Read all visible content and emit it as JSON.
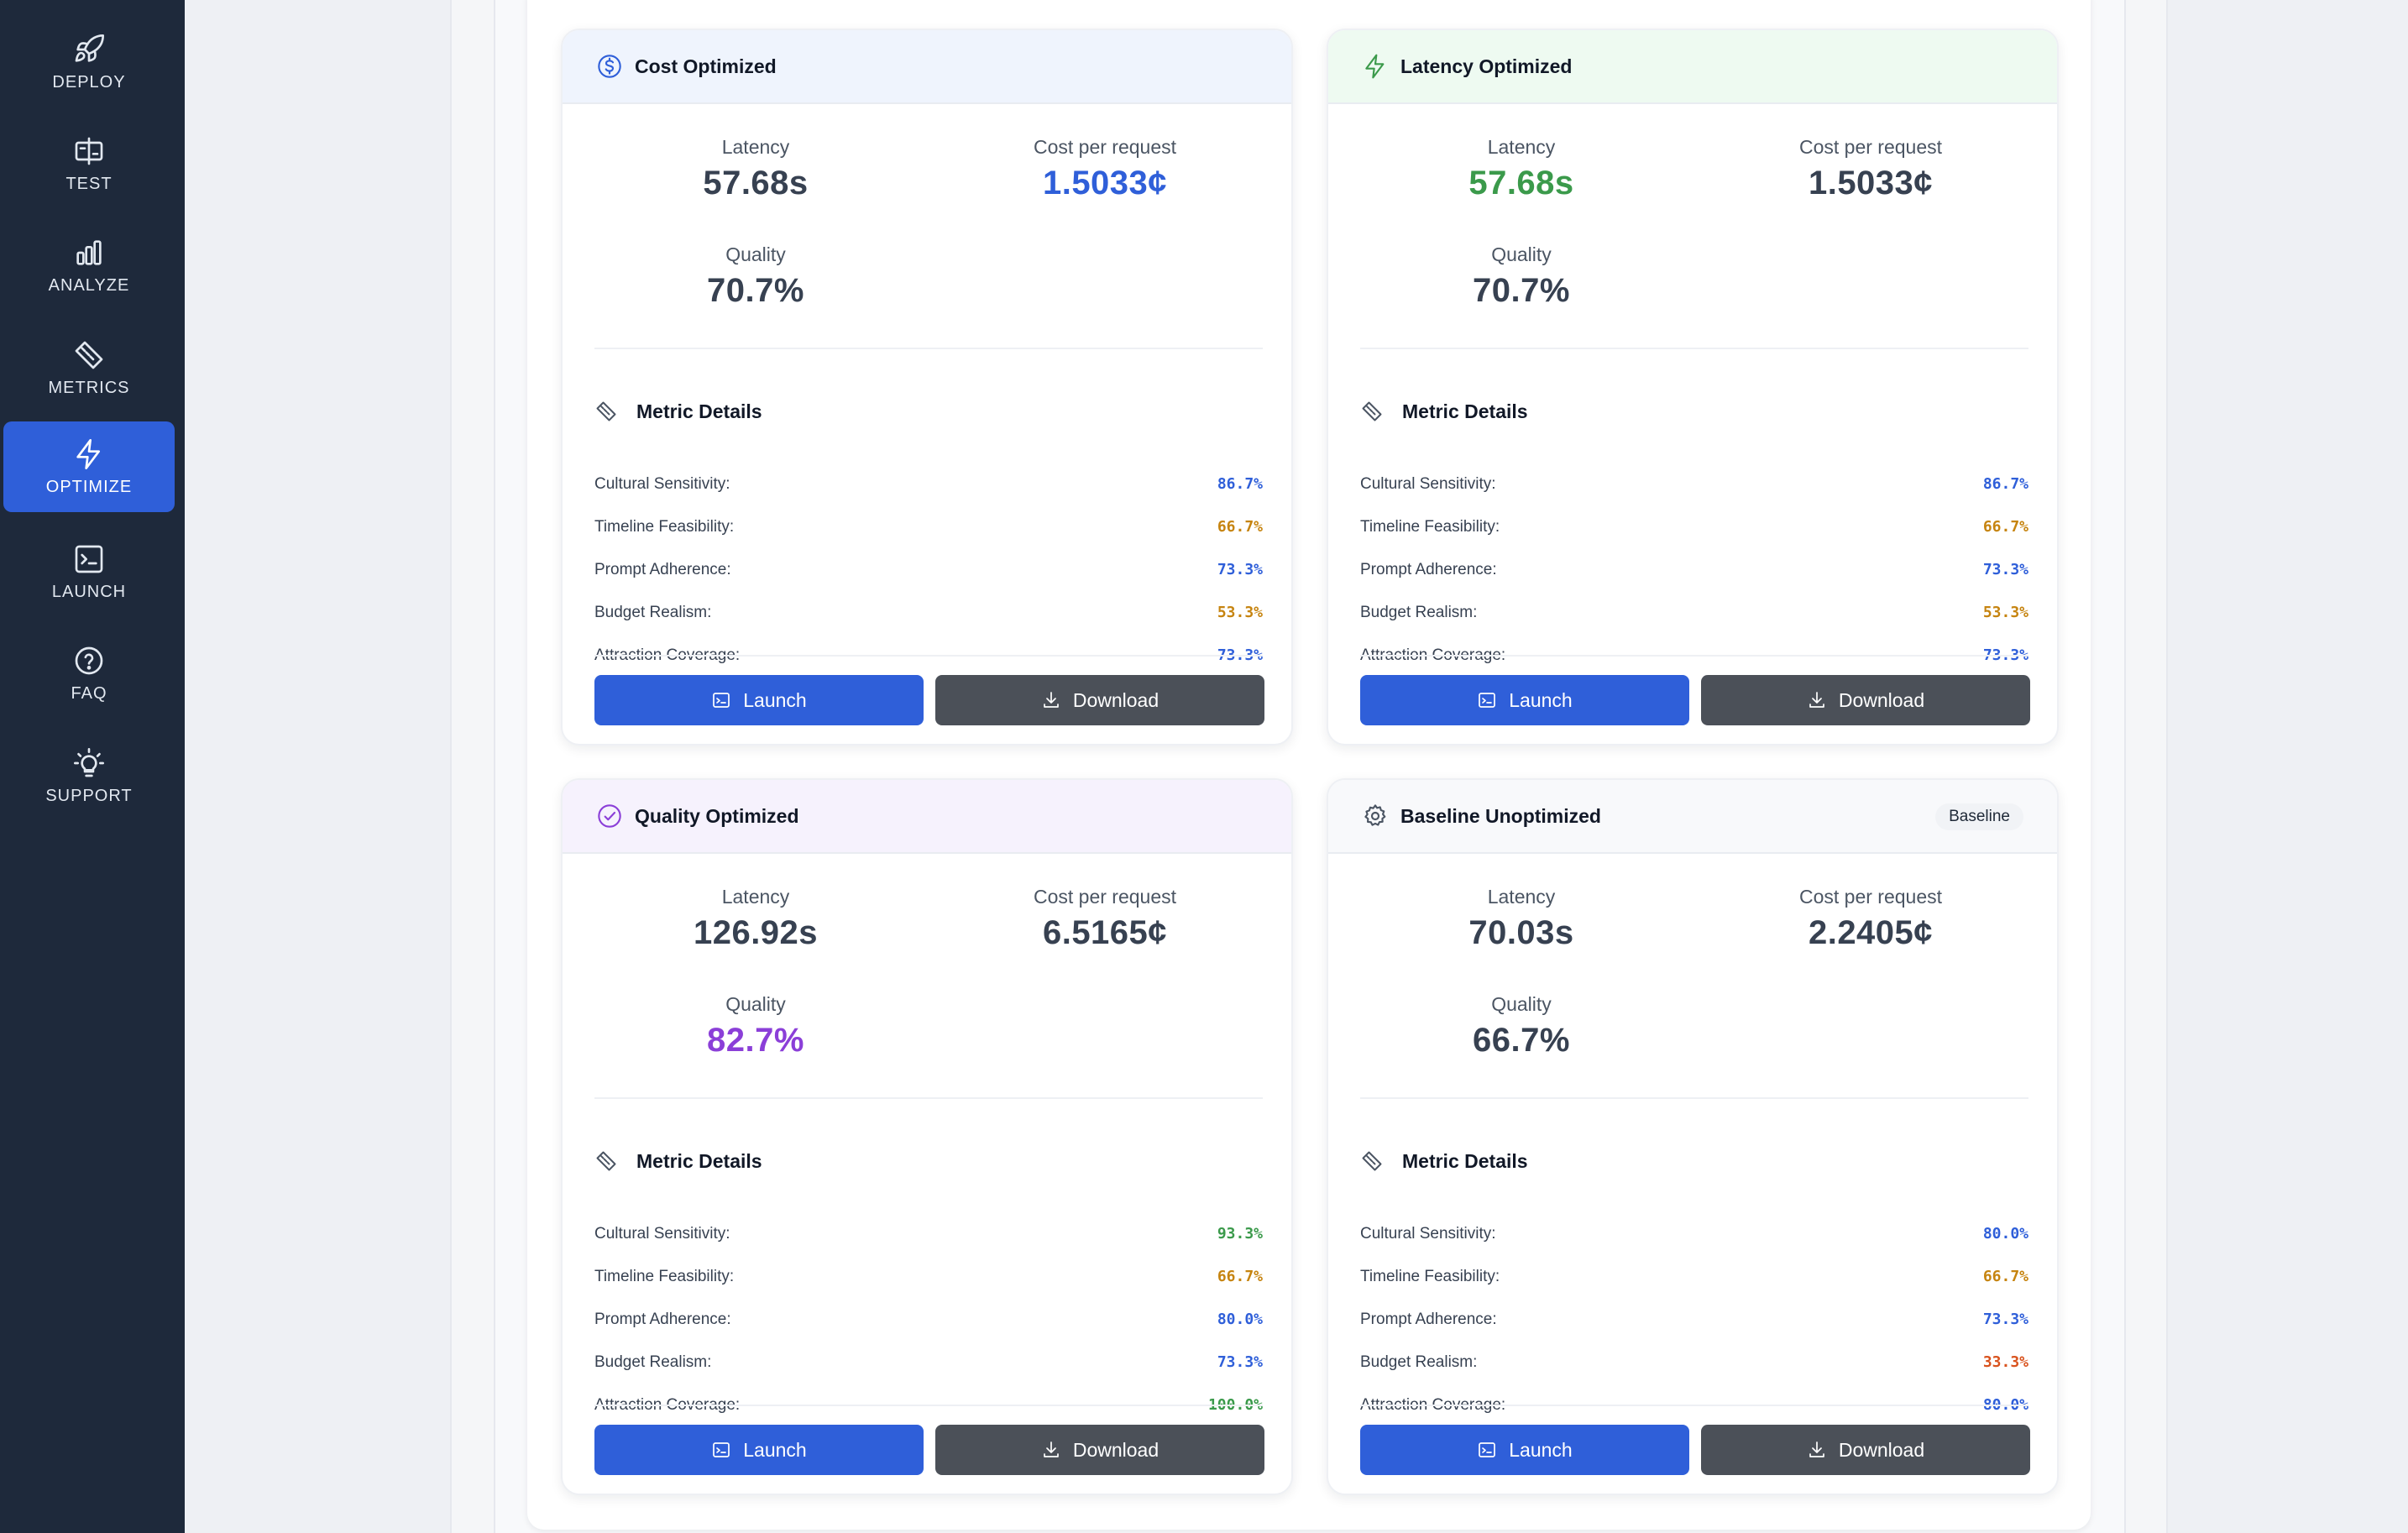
{
  "colors": {
    "sidebar_bg": "#1e293b",
    "active_nav": "#2f5fd9",
    "blue": "#2f5fd9",
    "green": "#3b9a4b",
    "purple": "#8b3fd8",
    "amber": "#c68410",
    "orange_red": "#d9531e",
    "launch_button": "#2f5fd9",
    "download_button": "#4b5058"
  },
  "sidebar": {
    "items": [
      {
        "label": "DEPLOY",
        "icon": "rocket-icon",
        "active": false
      },
      {
        "label": "TEST",
        "icon": "split-test-icon",
        "active": false
      },
      {
        "label": "ANALYZE",
        "icon": "bar-chart-icon",
        "active": false
      },
      {
        "label": "METRICS",
        "icon": "ruler-icon",
        "active": false
      },
      {
        "label": "OPTIMIZE",
        "icon": "lightning-icon",
        "active": true
      },
      {
        "label": "LAUNCH",
        "icon": "terminal-icon",
        "active": false
      },
      {
        "label": "FAQ",
        "icon": "help-circle-icon",
        "active": false
      },
      {
        "label": "SUPPORT",
        "icon": "lightbulb-icon",
        "active": false
      }
    ]
  },
  "cards": [
    {
      "title": "Cost Optimized",
      "icon": "dollar-circle-icon",
      "header_color": "#eff4fd",
      "badge": "",
      "latency_label": "Latency",
      "latency": "57.68s",
      "latency_color": "#374151",
      "cost_label": "Cost per request",
      "cost": "1.5033¢",
      "cost_color": "#2f5fd9",
      "quality_label": "Quality",
      "quality": "70.7%",
      "quality_color": "#374151",
      "metric_details_title": "Metric Details",
      "metrics": [
        {
          "name": "Cultural Sensitivity:",
          "value": "86.7%",
          "color": "#2f5fd9"
        },
        {
          "name": "Timeline Feasibility:",
          "value": "66.7%",
          "color": "#c68410"
        },
        {
          "name": "Prompt Adherence:",
          "value": "73.3%",
          "color": "#2f5fd9"
        },
        {
          "name": "Budget Realism:",
          "value": "53.3%",
          "color": "#c68410"
        },
        {
          "name": "Attraction Coverage:",
          "value": "73.3%",
          "color": "#2f5fd9"
        }
      ],
      "launch_label": "Launch",
      "download_label": "Download"
    },
    {
      "title": "Latency Optimized",
      "icon": "lightning-icon",
      "header_color": "#eefaf1",
      "badge": "",
      "latency_label": "Latency",
      "latency": "57.68s",
      "latency_color": "#3b9a4b",
      "cost_label": "Cost per request",
      "cost": "1.5033¢",
      "cost_color": "#374151",
      "quality_label": "Quality",
      "quality": "70.7%",
      "quality_color": "#374151",
      "metric_details_title": "Metric Details",
      "metrics": [
        {
          "name": "Cultural Sensitivity:",
          "value": "86.7%",
          "color": "#2f5fd9"
        },
        {
          "name": "Timeline Feasibility:",
          "value": "66.7%",
          "color": "#c68410"
        },
        {
          "name": "Prompt Adherence:",
          "value": "73.3%",
          "color": "#2f5fd9"
        },
        {
          "name": "Budget Realism:",
          "value": "53.3%",
          "color": "#c68410"
        },
        {
          "name": "Attraction Coverage:",
          "value": "73.3%",
          "color": "#2f5fd9"
        }
      ],
      "launch_label": "Launch",
      "download_label": "Download"
    },
    {
      "title": "Quality Optimized",
      "icon": "check-circle-icon",
      "header_color": "#f6f2fd",
      "badge": "",
      "latency_label": "Latency",
      "latency": "126.92s",
      "latency_color": "#374151",
      "cost_label": "Cost per request",
      "cost": "6.5165¢",
      "cost_color": "#374151",
      "quality_label": "Quality",
      "quality": "82.7%",
      "quality_color": "#8b3fd8",
      "metric_details_title": "Metric Details",
      "metrics": [
        {
          "name": "Cultural Sensitivity:",
          "value": "93.3%",
          "color": "#3b9a4b"
        },
        {
          "name": "Timeline Feasibility:",
          "value": "66.7%",
          "color": "#c68410"
        },
        {
          "name": "Prompt Adherence:",
          "value": "80.0%",
          "color": "#2f5fd9"
        },
        {
          "name": "Budget Realism:",
          "value": "73.3%",
          "color": "#2f5fd9"
        },
        {
          "name": "Attraction Coverage:",
          "value": "100.0%",
          "color": "#3b9a4b"
        }
      ],
      "launch_label": "Launch",
      "download_label": "Download"
    },
    {
      "title": "Baseline Unoptimized",
      "icon": "gear-icon",
      "header_color": "#f8f9fb",
      "badge": "Baseline",
      "latency_label": "Latency",
      "latency": "70.03s",
      "latency_color": "#374151",
      "cost_label": "Cost per request",
      "cost": "2.2405¢",
      "cost_color": "#374151",
      "quality_label": "Quality",
      "quality": "66.7%",
      "quality_color": "#374151",
      "metric_details_title": "Metric Details",
      "metrics": [
        {
          "name": "Cultural Sensitivity:",
          "value": "80.0%",
          "color": "#2f5fd9"
        },
        {
          "name": "Timeline Feasibility:",
          "value": "66.7%",
          "color": "#c68410"
        },
        {
          "name": "Prompt Adherence:",
          "value": "73.3%",
          "color": "#2f5fd9"
        },
        {
          "name": "Budget Realism:",
          "value": "33.3%",
          "color": "#d9531e"
        },
        {
          "name": "Attraction Coverage:",
          "value": "80.0%",
          "color": "#2f5fd9"
        }
      ],
      "launch_label": "Launch",
      "download_label": "Download"
    }
  ]
}
